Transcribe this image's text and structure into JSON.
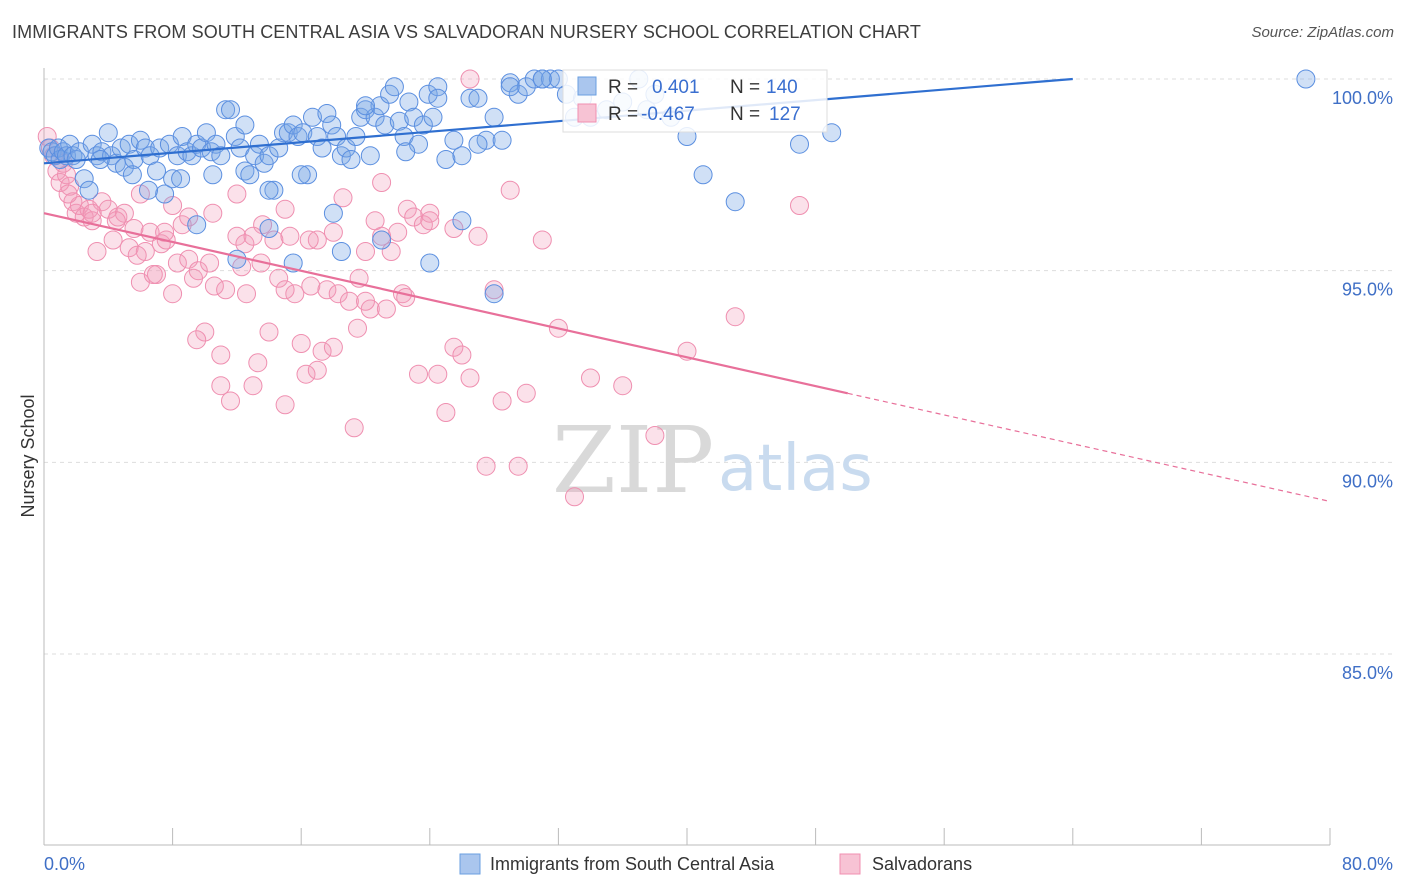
{
  "title": "IMMIGRANTS FROM SOUTH CENTRAL ASIA VS SALVADORAN NURSERY SCHOOL CORRELATION CHART",
  "source": "Source: ZipAtlas.com",
  "watermark": {
    "zip": "ZIP",
    "atlas": "atlas"
  },
  "stats_box": [
    {
      "r_label": "R =",
      "r_value": "0.401",
      "n_label": "N =",
      "n_value": "140",
      "color": "#6a9fe0"
    },
    {
      "r_label": "R =",
      "r_value": "-0.467",
      "n_label": "N =",
      "n_value": "127",
      "color": "#f08fb0"
    }
  ],
  "chart_data": {
    "type": "scatter",
    "title": "IMMIGRANTS FROM SOUTH CENTRAL ASIA VS SALVADORAN NURSERY SCHOOL CORRELATION CHART",
    "xlabel": "",
    "ylabel": "Nursery School",
    "xlim": [
      0,
      80
    ],
    "ylim": [
      80.5,
      100.8
    ],
    "x_tick_labels": [
      "0.0%",
      "80.0%"
    ],
    "y_ticks": [
      85,
      90,
      95,
      100
    ],
    "y_tick_labels": [
      "85.0%",
      "90.0%",
      "95.0%",
      "100.0%"
    ],
    "grid": true,
    "legend_position": "bottom-center",
    "series": [
      {
        "name": "Immigrants from South Central Asia",
        "color": "#5b8fe0",
        "trend": {
          "x0": 0.0,
          "y0": 97.8,
          "x1": 64.0,
          "y1": 100.0,
          "dashed_to": 64.0
        },
        "points": [
          [
            0.3,
            98.2
          ],
          [
            0.5,
            98.1
          ],
          [
            0.7,
            98.0
          ],
          [
            0.9,
            98.2
          ],
          [
            1.0,
            97.9
          ],
          [
            1.2,
            98.1
          ],
          [
            1.4,
            98.0
          ],
          [
            1.6,
            98.3
          ],
          [
            1.8,
            98.0
          ],
          [
            2.0,
            97.9
          ],
          [
            2.2,
            98.1
          ],
          [
            2.5,
            97.4
          ],
          [
            2.8,
            97.1
          ],
          [
            3.0,
            98.3
          ],
          [
            3.3,
            98.0
          ],
          [
            3.6,
            98.1
          ],
          [
            4.0,
            98.6
          ],
          [
            4.2,
            98.0
          ],
          [
            4.5,
            97.8
          ],
          [
            4.8,
            98.2
          ],
          [
            5.0,
            97.7
          ],
          [
            5.3,
            98.3
          ],
          [
            5.6,
            97.9
          ],
          [
            6.0,
            98.4
          ],
          [
            6.3,
            98.2
          ],
          [
            6.6,
            98.0
          ],
          [
            7.0,
            97.6
          ],
          [
            7.2,
            98.2
          ],
          [
            7.5,
            97.0
          ],
          [
            7.8,
            98.3
          ],
          [
            8.0,
            97.4
          ],
          [
            8.3,
            98.0
          ],
          [
            8.6,
            98.5
          ],
          [
            8.9,
            98.1
          ],
          [
            9.2,
            98.0
          ],
          [
            9.5,
            98.3
          ],
          [
            9.8,
            98.2
          ],
          [
            10.1,
            98.6
          ],
          [
            10.4,
            98.1
          ],
          [
            10.7,
            98.3
          ],
          [
            11.0,
            98.0
          ],
          [
            11.3,
            99.2
          ],
          [
            11.6,
            99.2
          ],
          [
            11.9,
            98.5
          ],
          [
            12.2,
            98.2
          ],
          [
            12.5,
            97.6
          ],
          [
            12.8,
            97.5
          ],
          [
            13.1,
            98.0
          ],
          [
            13.4,
            98.3
          ],
          [
            13.7,
            97.8
          ],
          [
            14.0,
            98.0
          ],
          [
            14.3,
            97.1
          ],
          [
            14.6,
            98.2
          ],
          [
            14.9,
            98.6
          ],
          [
            15.2,
            98.6
          ],
          [
            15.5,
            98.8
          ],
          [
            15.8,
            98.5
          ],
          [
            16.1,
            98.6
          ],
          [
            16.4,
            97.5
          ],
          [
            16.7,
            99.0
          ],
          [
            17.0,
            98.5
          ],
          [
            17.3,
            98.2
          ],
          [
            17.6,
            99.1
          ],
          [
            17.9,
            98.8
          ],
          [
            18.2,
            98.5
          ],
          [
            18.5,
            98.0
          ],
          [
            18.8,
            98.2
          ],
          [
            19.1,
            97.9
          ],
          [
            19.4,
            98.5
          ],
          [
            19.7,
            99.0
          ],
          [
            20.0,
            99.2
          ],
          [
            20.3,
            98.0
          ],
          [
            20.6,
            99.0
          ],
          [
            20.9,
            99.3
          ],
          [
            21.2,
            98.8
          ],
          [
            21.5,
            99.6
          ],
          [
            21.8,
            99.8
          ],
          [
            22.1,
            98.9
          ],
          [
            22.4,
            98.5
          ],
          [
            22.7,
            99.4
          ],
          [
            23.0,
            99.0
          ],
          [
            23.3,
            98.3
          ],
          [
            23.6,
            98.8
          ],
          [
            23.9,
            99.6
          ],
          [
            24.2,
            99.0
          ],
          [
            24.5,
            99.8
          ],
          [
            25.0,
            97.9
          ],
          [
            25.5,
            98.4
          ],
          [
            26.0,
            98.0
          ],
          [
            26.5,
            99.5
          ],
          [
            27.0,
            99.5
          ],
          [
            27.5,
            98.4
          ],
          [
            28.0,
            99.0
          ],
          [
            28.5,
            98.4
          ],
          [
            29.0,
            99.9
          ],
          [
            29.5,
            99.6
          ],
          [
            30.0,
            99.8
          ],
          [
            30.5,
            100.0
          ],
          [
            31.0,
            100.0
          ],
          [
            31.5,
            100.0
          ],
          [
            32.0,
            100.0
          ],
          [
            32.5,
            99.6
          ],
          [
            33.0,
            99.0
          ],
          [
            33.5,
            99.5
          ],
          [
            34.0,
            99.0
          ],
          [
            35.0,
            99.2
          ],
          [
            36.0,
            99.4
          ],
          [
            37.0,
            100.0
          ],
          [
            37.5,
            99.2
          ],
          [
            38.0,
            99.6
          ],
          [
            39.0,
            99.0
          ],
          [
            40.0,
            98.5
          ],
          [
            41.0,
            97.5
          ],
          [
            43.0,
            96.8
          ],
          [
            47.0,
            98.3
          ],
          [
            49.0,
            98.6
          ],
          [
            78.5,
            100.0
          ],
          [
            9.5,
            96.2
          ],
          [
            12.0,
            95.3
          ],
          [
            14.0,
            96.1
          ],
          [
            15.5,
            95.2
          ],
          [
            18.0,
            96.5
          ],
          [
            18.5,
            95.5
          ],
          [
            21.0,
            95.8
          ],
          [
            24.0,
            95.2
          ],
          [
            26.0,
            96.3
          ],
          [
            28.0,
            94.4
          ],
          [
            14.0,
            97.1
          ],
          [
            16.0,
            97.5
          ],
          [
            6.5,
            97.1
          ],
          [
            8.5,
            97.4
          ],
          [
            3.5,
            97.9
          ],
          [
            5.5,
            97.5
          ],
          [
            10.5,
            97.5
          ],
          [
            12.5,
            98.8
          ],
          [
            20.0,
            99.3
          ],
          [
            22.5,
            98.1
          ],
          [
            24.5,
            99.5
          ],
          [
            27.0,
            98.3
          ],
          [
            29.0,
            99.8
          ],
          [
            31.0,
            100.0
          ]
        ]
      },
      {
        "name": "Salvadorans",
        "color": "#f39ab8",
        "trend": {
          "x0": 0.0,
          "y0": 96.5,
          "x1": 50.0,
          "y1": 91.8,
          "dashed_to": 80.0
        },
        "points": [
          [
            0.2,
            98.5
          ],
          [
            0.4,
            98.2
          ],
          [
            0.6,
            98.0
          ],
          [
            0.8,
            97.6
          ],
          [
            1.0,
            97.3
          ],
          [
            1.2,
            97.8
          ],
          [
            1.4,
            97.5
          ],
          [
            1.6,
            97.2
          ],
          [
            1.8,
            96.8
          ],
          [
            2.0,
            96.5
          ],
          [
            2.2,
            96.7
          ],
          [
            2.5,
            96.4
          ],
          [
            2.8,
            96.6
          ],
          [
            3.0,
            96.3
          ],
          [
            3.3,
            95.5
          ],
          [
            3.6,
            96.8
          ],
          [
            4.0,
            96.6
          ],
          [
            4.3,
            95.8
          ],
          [
            4.6,
            96.4
          ],
          [
            5.0,
            96.5
          ],
          [
            5.3,
            95.6
          ],
          [
            5.6,
            96.1
          ],
          [
            6.0,
            94.7
          ],
          [
            6.3,
            95.5
          ],
          [
            6.6,
            96.0
          ],
          [
            7.0,
            94.9
          ],
          [
            7.3,
            95.7
          ],
          [
            7.6,
            95.8
          ],
          [
            8.0,
            94.4
          ],
          [
            8.3,
            95.2
          ],
          [
            8.6,
            96.2
          ],
          [
            9.0,
            95.3
          ],
          [
            9.3,
            94.8
          ],
          [
            9.6,
            95.0
          ],
          [
            10.0,
            93.4
          ],
          [
            10.3,
            95.2
          ],
          [
            10.6,
            94.6
          ],
          [
            11.0,
            92.8
          ],
          [
            11.3,
            94.5
          ],
          [
            11.6,
            91.6
          ],
          [
            12.0,
            95.9
          ],
          [
            12.3,
            95.1
          ],
          [
            12.6,
            94.4
          ],
          [
            13.0,
            92.0
          ],
          [
            13.3,
            92.6
          ],
          [
            13.6,
            96.2
          ],
          [
            14.0,
            93.4
          ],
          [
            14.3,
            95.8
          ],
          [
            14.6,
            94.8
          ],
          [
            15.0,
            96.6
          ],
          [
            15.3,
            95.9
          ],
          [
            15.6,
            94.4
          ],
          [
            16.0,
            93.1
          ],
          [
            16.3,
            92.3
          ],
          [
            16.6,
            94.6
          ],
          [
            17.0,
            95.8
          ],
          [
            17.3,
            92.9
          ],
          [
            17.6,
            94.5
          ],
          [
            18.0,
            96.0
          ],
          [
            18.3,
            94.4
          ],
          [
            18.6,
            96.9
          ],
          [
            19.0,
            94.2
          ],
          [
            19.3,
            90.9
          ],
          [
            19.6,
            94.8
          ],
          [
            20.0,
            95.5
          ],
          [
            20.3,
            94.0
          ],
          [
            20.6,
            96.3
          ],
          [
            21.0,
            95.9
          ],
          [
            21.3,
            94.0
          ],
          [
            21.6,
            95.5
          ],
          [
            22.0,
            96.0
          ],
          [
            22.3,
            94.4
          ],
          [
            22.6,
            96.6
          ],
          [
            23.0,
            96.4
          ],
          [
            23.3,
            92.3
          ],
          [
            23.6,
            96.2
          ],
          [
            24.0,
            96.5
          ],
          [
            24.5,
            92.3
          ],
          [
            25.0,
            91.3
          ],
          [
            25.5,
            93.0
          ],
          [
            26.0,
            92.8
          ],
          [
            26.5,
            92.2
          ],
          [
            27.0,
            95.9
          ],
          [
            27.5,
            89.9
          ],
          [
            28.0,
            94.5
          ],
          [
            28.5,
            91.6
          ],
          [
            29.0,
            97.1
          ],
          [
            29.5,
            89.9
          ],
          [
            30.0,
            91.8
          ],
          [
            31.0,
            95.8
          ],
          [
            32.0,
            93.5
          ],
          [
            33.0,
            89.1
          ],
          [
            34.0,
            92.2
          ],
          [
            36.0,
            92.0
          ],
          [
            38.0,
            90.7
          ],
          [
            40.0,
            92.9
          ],
          [
            43.0,
            93.8
          ],
          [
            47.0,
            96.7
          ],
          [
            1.5,
            97.0
          ],
          [
            3.0,
            96.5
          ],
          [
            4.5,
            96.3
          ],
          [
            6.0,
            97.0
          ],
          [
            7.5,
            96.0
          ],
          [
            9.0,
            96.4
          ],
          [
            10.5,
            96.5
          ],
          [
            12.0,
            97.0
          ],
          [
            13.5,
            95.2
          ],
          [
            15.0,
            94.5
          ],
          [
            16.5,
            95.8
          ],
          [
            18.0,
            93.0
          ],
          [
            19.5,
            93.5
          ],
          [
            21.0,
            97.3
          ],
          [
            22.5,
            94.3
          ],
          [
            24.0,
            96.3
          ],
          [
            25.5,
            96.1
          ],
          [
            26.5,
            100.0
          ],
          [
            20.0,
            94.2
          ],
          [
            11.0,
            92.0
          ],
          [
            15.0,
            91.5
          ],
          [
            17.0,
            92.4
          ],
          [
            12.5,
            95.7
          ],
          [
            9.5,
            93.2
          ],
          [
            8.0,
            96.7
          ],
          [
            6.8,
            94.9
          ],
          [
            5.8,
            95.4
          ],
          [
            13.0,
            95.9
          ]
        ]
      }
    ]
  },
  "legend": [
    {
      "label": "Immigrants from South Central Asia",
      "color": "#5b8fe0"
    },
    {
      "label": "Salvadorans",
      "color": "#f39ab8"
    }
  ]
}
